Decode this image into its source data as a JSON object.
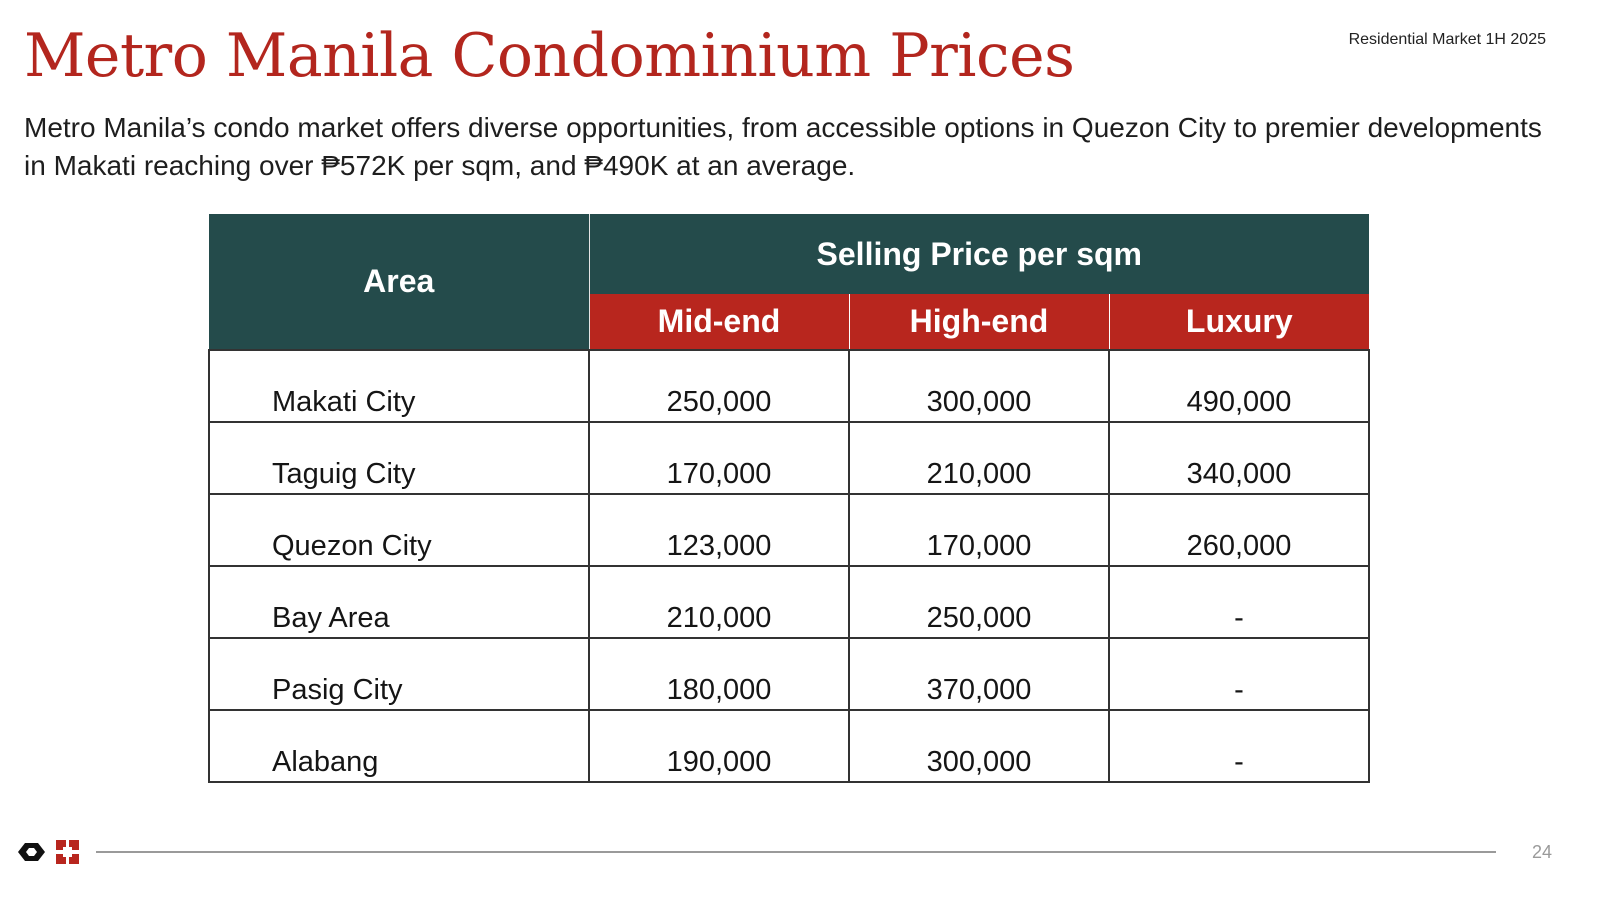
{
  "header": {
    "title": "Metro Manila Condominium Prices",
    "tag": "Residential Market 1H 2025",
    "subtitle": "Metro Manila’s condo market offers diverse opportunities, from accessible options in Quezon City to premier developments in Makati reaching over ₱572K per sqm, and ₱490K at an average."
  },
  "table": {
    "area_header": "Area",
    "group_header": "Selling Price per sqm",
    "columns": [
      "Mid-end",
      "High-end",
      "Luxury"
    ],
    "rows": [
      {
        "area": "Makati City",
        "values": [
          "250,000",
          "300,000",
          "490,000"
        ]
      },
      {
        "area": "Taguig City",
        "values": [
          "170,000",
          "210,000",
          "340,000"
        ]
      },
      {
        "area": "Quezon City",
        "values": [
          "123,000",
          "170,000",
          "260,000"
        ]
      },
      {
        "area": "Bay Area",
        "values": [
          "210,000",
          "250,000",
          "-"
        ]
      },
      {
        "area": "Pasig City",
        "values": [
          "180,000",
          "370,000",
          "-"
        ]
      },
      {
        "area": "Alabang",
        "values": [
          "190,000",
          "300,000",
          "-"
        ]
      }
    ]
  },
  "footer": {
    "page_number": "24",
    "logo_icon": "company-logo-icon"
  },
  "colors": {
    "title": "#b3261e",
    "header_teal": "#244b4b",
    "header_red": "#b8261e"
  }
}
